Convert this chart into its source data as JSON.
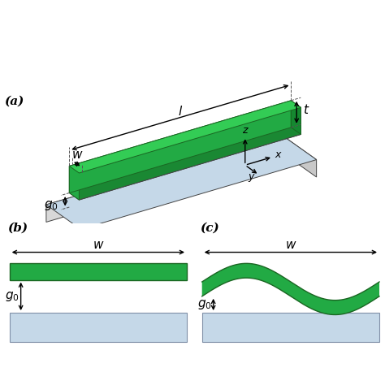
{
  "green_top": "#33cc55",
  "green_face": "#22aa44",
  "green_dark": "#1a8833",
  "green_side_dark": "#158830",
  "blue_plate_top": "#c5d8e8",
  "blue_plate_side_front": "#d8e4ee",
  "blue_plate_side_right": "#b8ccd8",
  "gray_front": "#d8d8d8",
  "gray_right": "#c8c8c8",
  "gray_bottom": "#e8e8e8",
  "white_bg": "#ffffff",
  "panel_a_label": "(a)",
  "panel_b_label": "(b)",
  "panel_c_label": "(c)"
}
